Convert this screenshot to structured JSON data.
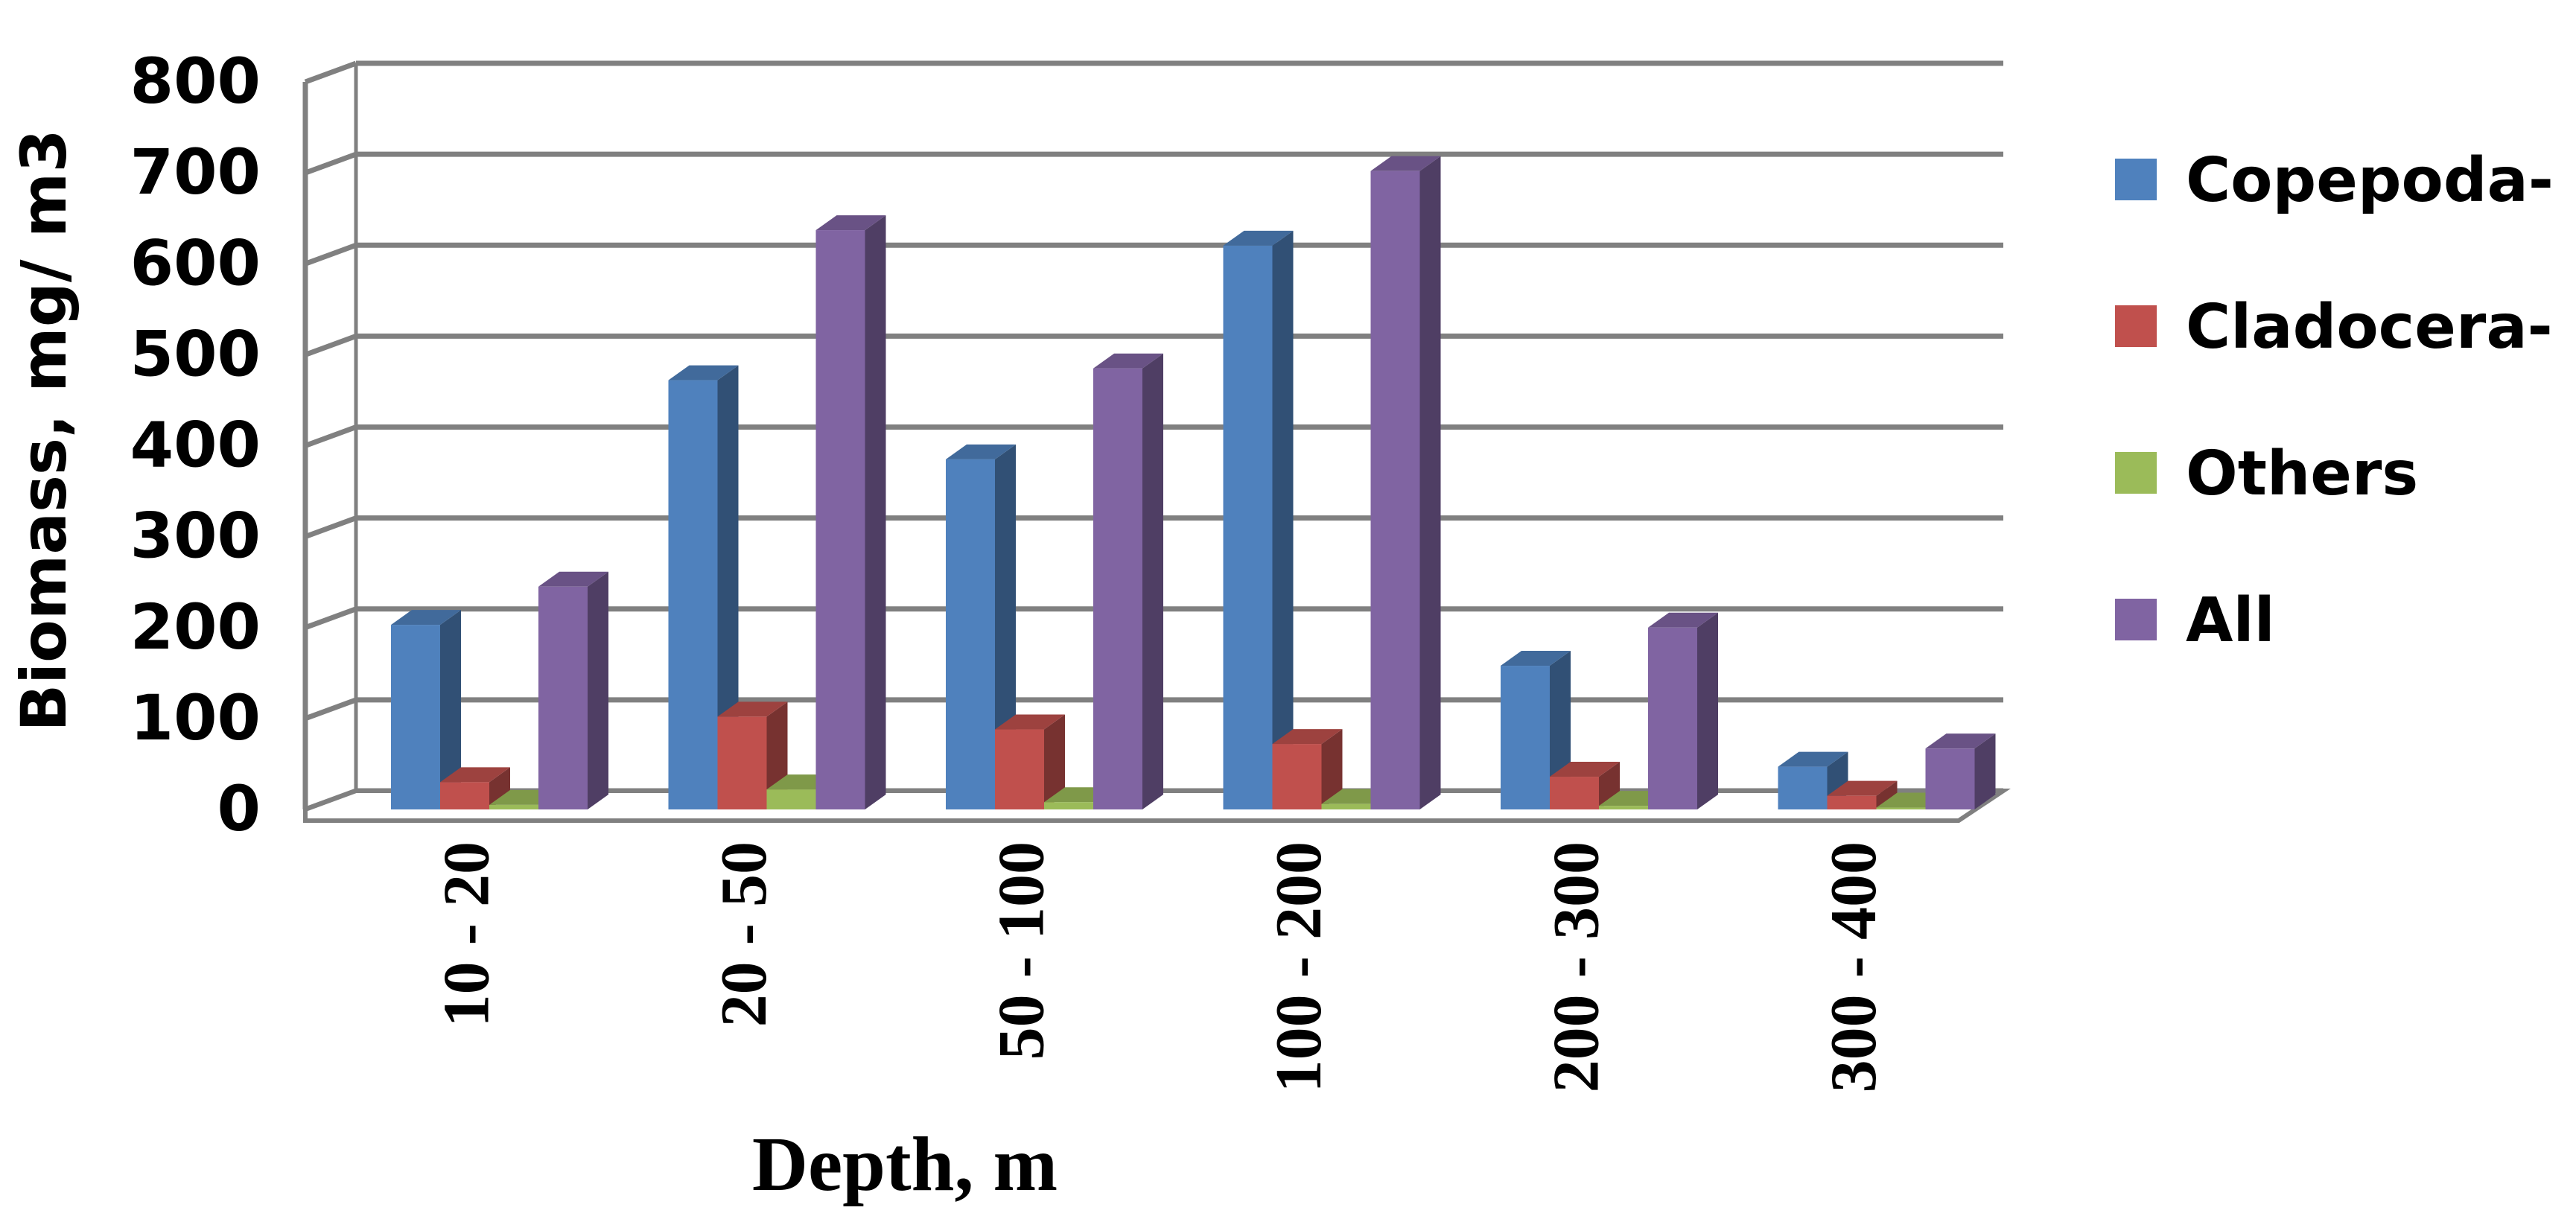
{
  "chart_data": {
    "type": "bar",
    "title": "",
    "xlabel": "Depth, m",
    "ylabel": "Biomass, mg/ m3",
    "categories": [
      "10 - 20",
      "20 - 50",
      "50 - 100",
      "100 - 200",
      "200 - 300",
      "300 - 400"
    ],
    "ylim": [
      0,
      800
    ],
    "yticks": [
      "0",
      "100",
      "200",
      "300",
      "400",
      "500",
      "600",
      "700",
      "800"
    ],
    "grid": true,
    "legend_position": "right",
    "series": [
      {
        "name": "Copepoda-",
        "color": "#4F81BD",
        "values": [
          203,
          472,
          385,
          620,
          158,
          47
        ]
      },
      {
        "name": "Cladocera-",
        "color": "#C0504D",
        "values": [
          30,
          102,
          88,
          72,
          36,
          15
        ]
      },
      {
        "name": "Others",
        "color": "#9BBB59",
        "values": [
          5,
          22,
          8,
          6,
          4,
          2
        ]
      },
      {
        "name": "All",
        "color": "#8064A2",
        "values": [
          245,
          637,
          485,
          702,
          200,
          67
        ]
      }
    ]
  }
}
